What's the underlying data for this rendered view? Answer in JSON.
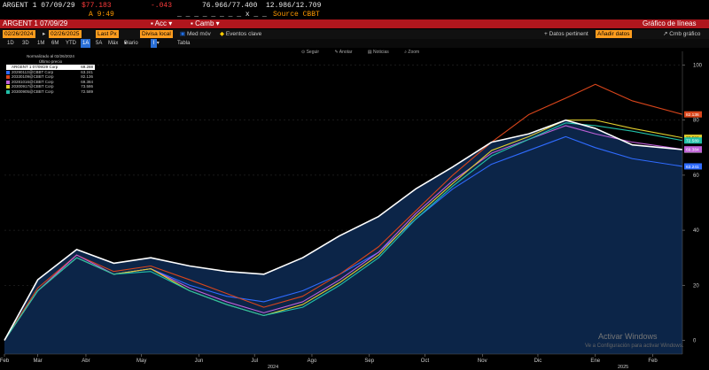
{
  "topbar": {
    "ticker": "ARGENT 1 07/09/29",
    "price": "$77.183",
    "change": "-.043",
    "bidask": "76.966/77.400",
    "spread": "12.986/12.709",
    "time": "A 9:49",
    "hist": "_ _ _ _ _ _ _ _ x _ _",
    "source": "Source CBBT"
  },
  "redbar": {
    "ticker": "ARGENT 1 07/09/29",
    "menu1": "Acc",
    "menu2": "Camb",
    "title": "Gráfico de líneas"
  },
  "row3": {
    "date_from": "02/26/2024",
    "date_to": "02/26/2025",
    "field": "Last Px",
    "field2": "Divisa local",
    "mov_label": "Med móv",
    "events_label": "Eventos clave",
    "datos": "Datos pertinent",
    "datos_box": "Añadir datos",
    "cmb": "Cmb gráfico"
  },
  "row4": {
    "ranges": [
      "1D",
      "3D",
      "1M",
      "6M",
      "YTD",
      "1A",
      "5A",
      "Máx"
    ],
    "selected": "1A",
    "interval": "Diario",
    "extra": "Tabla"
  },
  "toolbar": [
    "Seguir",
    "Anotar",
    "Noticias",
    "Zoom"
  ],
  "legend": {
    "header1": "Normalizado al 02/26/2024",
    "header2": "Último precio"
  },
  "watermark": {
    "title": "Activar Windows",
    "subtitle": "Ve a Configuración para activar Windows."
  },
  "chart_data": {
    "type": "area",
    "normalized_date": "02/26/2024",
    "value_field": "Último precio",
    "x": [
      "2024-02-26",
      "2024-03-15",
      "2024-04-05",
      "2024-04-25",
      "2024-05-15",
      "2024-06-05",
      "2024-06-25",
      "2024-07-15",
      "2024-08-05",
      "2024-08-25",
      "2024-09-15",
      "2024-10-05",
      "2024-10-25",
      "2024-11-15",
      "2024-12-05",
      "2024-12-25",
      "2025-01-10",
      "2025-01-30",
      "2025-02-26"
    ],
    "xticks": [
      {
        "label": "Feb",
        "date": "2024-02-26"
      },
      {
        "label": "Mar",
        "date": "2024-03-15"
      },
      {
        "label": "Abr",
        "date": "2024-04-10"
      },
      {
        "label": "May",
        "date": "2024-05-10"
      },
      {
        "label": "Jun",
        "date": "2024-06-10"
      },
      {
        "label": "Jul",
        "date": "2024-07-10"
      },
      {
        "label": "Ago",
        "date": "2024-08-10"
      },
      {
        "label": "Sep",
        "date": "2024-09-10"
      },
      {
        "label": "Oct",
        "date": "2024-10-10"
      },
      {
        "label": "Nov",
        "date": "2024-11-10"
      },
      {
        "label": "Dic",
        "date": "2024-12-10"
      },
      {
        "label": "Ene",
        "date": "2025-01-10"
      },
      {
        "label": "Feb",
        "date": "2025-02-10"
      }
    ],
    "xticks_secondary": [
      {
        "label": "2024",
        "date": "2024-07-20"
      },
      {
        "label": "2025",
        "date": "2025-01-25"
      }
    ],
    "ylim": [
      -5,
      105
    ],
    "yticks": [
      0,
      20,
      40,
      60,
      80,
      100
    ],
    "series": [
      {
        "name": "ARGENT 1 07/09/29 Corp",
        "color": "#ffffff",
        "last": "69.288",
        "values": [
          0,
          22,
          33,
          28,
          30,
          27,
          25,
          24,
          30,
          38,
          45,
          55,
          63,
          72,
          75,
          80,
          77,
          71,
          69.3
        ]
      },
      {
        "name": "20290113@CBBT Corp",
        "color": "#2f6bff",
        "last": "63.241",
        "values": [
          0,
          18,
          30,
          24,
          26,
          20,
          16,
          14,
          18,
          24,
          32,
          44,
          55,
          64,
          69,
          74,
          70,
          66,
          63.2
        ]
      },
      {
        "name": "20330109@CBBT Corp",
        "color": "#d9451b",
        "last": "82.136",
        "values": [
          0,
          19,
          31,
          25,
          27,
          22,
          17,
          12,
          16,
          24,
          34,
          47,
          60,
          72,
          82,
          88,
          93,
          87,
          82.1
        ]
      },
      {
        "name": "20281016@CBBT Corp",
        "color": "#c060d8",
        "last": "69.384",
        "values": [
          0,
          18,
          31,
          24,
          26,
          19,
          14,
          10,
          14,
          22,
          32,
          46,
          58,
          68,
          73,
          78,
          75,
          72,
          69.4
        ]
      },
      {
        "name": "20300917@CBBT Corp",
        "color": "#e2cf2e",
        "last": "73.586",
        "values": [
          0,
          18,
          30,
          24,
          26,
          18,
          13,
          9,
          13,
          21,
          31,
          45,
          57,
          69,
          74,
          80,
          80,
          77,
          73.6
        ]
      },
      {
        "name": "20300905@CBBT Corp",
        "color": "#21c0a8",
        "last": "72.589",
        "values": [
          0,
          18,
          30,
          24,
          25,
          18,
          13,
          9,
          12,
          20,
          30,
          44,
          56,
          67,
          73,
          79,
          78,
          76,
          72.6
        ]
      }
    ]
  }
}
